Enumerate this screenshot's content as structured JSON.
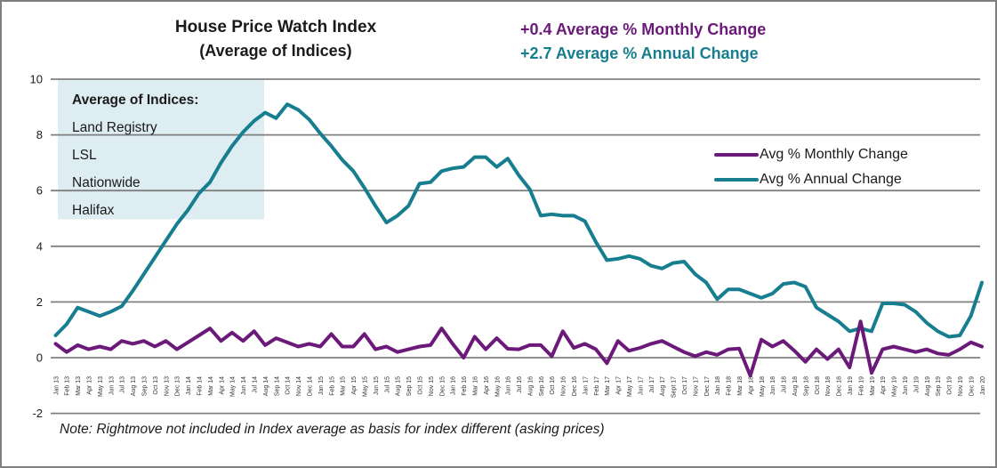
{
  "title": {
    "line1": "House Price Watch Index",
    "line2": "(Average of Indices)"
  },
  "stats": {
    "monthly": "+0.4 Average % Monthly Change",
    "annual": "+2.7 Average % Annual Change"
  },
  "indices_box": {
    "heading": "Average of Indices:",
    "items": [
      "Land Registry",
      "LSL",
      "Nationwide",
      "Halifax"
    ]
  },
  "legend": [
    {
      "label": "Avg % Monthly Change",
      "color": "#6B1A7A"
    },
    {
      "label": "Avg % Annual Change",
      "color": "#177E8F"
    }
  ],
  "note": "Note: Rightmove not included in Index average as basis for index different (asking prices)",
  "colors": {
    "purple": "#6B1A7A",
    "teal": "#177E8F",
    "grid": "#808080",
    "box_fill": "#DDEDF2",
    "text": "#1A1A1A"
  },
  "chart_data": {
    "type": "line",
    "title": "House Price Watch Index (Average of Indices)",
    "xlabel": "",
    "ylabel": "",
    "ylim": [
      -2,
      10
    ],
    "yticks": [
      10,
      8,
      6,
      4,
      2,
      0,
      -2
    ],
    "grid": "horizontal",
    "legend_position": "middle-right",
    "x": [
      "Jan 13",
      "Feb 13",
      "Mar 13",
      "Apr 13",
      "May 13",
      "Jun 13",
      "Jul 13",
      "Aug 13",
      "Sep 13",
      "Oct 13",
      "Nov 13",
      "Dec 13",
      "Jan 14",
      "Feb 14",
      "Mar 14",
      "Apr 14",
      "May 14",
      "Jun 14",
      "Jul 14",
      "Aug 14",
      "Sep 14",
      "Oct 14",
      "Nov 14",
      "Dec 14",
      "Jan 15",
      "Feb 15",
      "Mar 15",
      "Apr 15",
      "May 15",
      "Jun 15",
      "Jul 15",
      "Aug 15",
      "Sep 15",
      "Oct 15",
      "Nov 15",
      "Dec 15",
      "Jan 16",
      "Feb 16",
      "Mar 16",
      "Apr 16",
      "May 16",
      "Jun 16",
      "Jul 16",
      "Aug 16",
      "Sep 16",
      "Oct 16",
      "Nov 16",
      "Dec 16",
      "Jan 17",
      "Feb 17",
      "Mar 17",
      "Apr 17",
      "May 17",
      "Jun 17",
      "Jul 17",
      "Aug 17",
      "Sept 17",
      "Oct 17",
      "Nov 17",
      "Dec 17",
      "Jan 18",
      "Feb 18",
      "Mar 18",
      "Apr 18",
      "May 18",
      "Jun 18",
      "Jul 18",
      "Aug 18",
      "Sep 18",
      "Oct 18",
      "Nov 18",
      "Dec 18",
      "Jan 19",
      "Feb 19",
      "Mar 19",
      "Apr 19",
      "May 19",
      "Jun 19",
      "Jul 19",
      "Aug 19",
      "Sep 19",
      "Oct 19",
      "Nov 19",
      "Dec 19",
      "Jan 20"
    ],
    "series": [
      {
        "name": "Avg % Monthly Change",
        "color": "#6B1A7A",
        "values": [
          0.5,
          0.2,
          0.45,
          0.3,
          0.4,
          0.3,
          0.6,
          0.5,
          0.6,
          0.4,
          0.6,
          0.3,
          0.55,
          0.8,
          1.05,
          0.6,
          0.9,
          0.6,
          0.95,
          0.45,
          0.7,
          0.55,
          0.4,
          0.5,
          0.4,
          0.85,
          0.4,
          0.4,
          0.85,
          0.3,
          0.4,
          0.2,
          0.3,
          0.4,
          0.45,
          1.05,
          0.5,
          0.0,
          0.75,
          0.3,
          0.7,
          0.32,
          0.3,
          0.45,
          0.45,
          0.05,
          0.95,
          0.35,
          0.5,
          0.3,
          -0.2,
          0.6,
          0.25,
          0.35,
          0.5,
          0.6,
          0.4,
          0.2,
          0.05,
          0.2,
          0.1,
          0.3,
          0.33,
          -0.65,
          0.65,
          0.4,
          0.6,
          0.25,
          -0.15,
          0.3,
          -0.05,
          0.3,
          -0.35,
          1.3,
          -0.55,
          0.3,
          0.4,
          0.3,
          0.2,
          0.3,
          0.15,
          0.1,
          0.3,
          0.55,
          0.4
        ]
      },
      {
        "name": "Avg % Annual Change",
        "color": "#177E8F",
        "values": [
          0.8,
          1.2,
          1.8,
          1.65,
          1.5,
          1.65,
          1.85,
          2.4,
          3.0,
          3.6,
          4.2,
          4.8,
          5.3,
          5.9,
          6.3,
          7.0,
          7.6,
          8.1,
          8.5,
          8.8,
          8.6,
          9.1,
          8.9,
          8.55,
          8.05,
          7.6,
          7.1,
          6.7,
          6.1,
          5.45,
          4.85,
          5.1,
          5.45,
          6.25,
          6.3,
          6.7,
          6.8,
          6.85,
          7.2,
          7.2,
          6.85,
          7.15,
          6.55,
          6.05,
          5.1,
          5.15,
          5.1,
          5.1,
          4.9,
          4.15,
          3.5,
          3.55,
          3.65,
          3.55,
          3.3,
          3.2,
          3.4,
          3.45,
          3.0,
          2.7,
          2.1,
          2.45,
          2.45,
          2.3,
          2.15,
          2.3,
          2.65,
          2.7,
          2.55,
          1.8,
          1.55,
          1.3,
          0.95,
          1.05,
          0.95,
          1.95,
          1.95,
          1.9,
          1.65,
          1.25,
          0.95,
          0.75,
          0.8,
          1.5,
          2.7
        ]
      }
    ]
  }
}
